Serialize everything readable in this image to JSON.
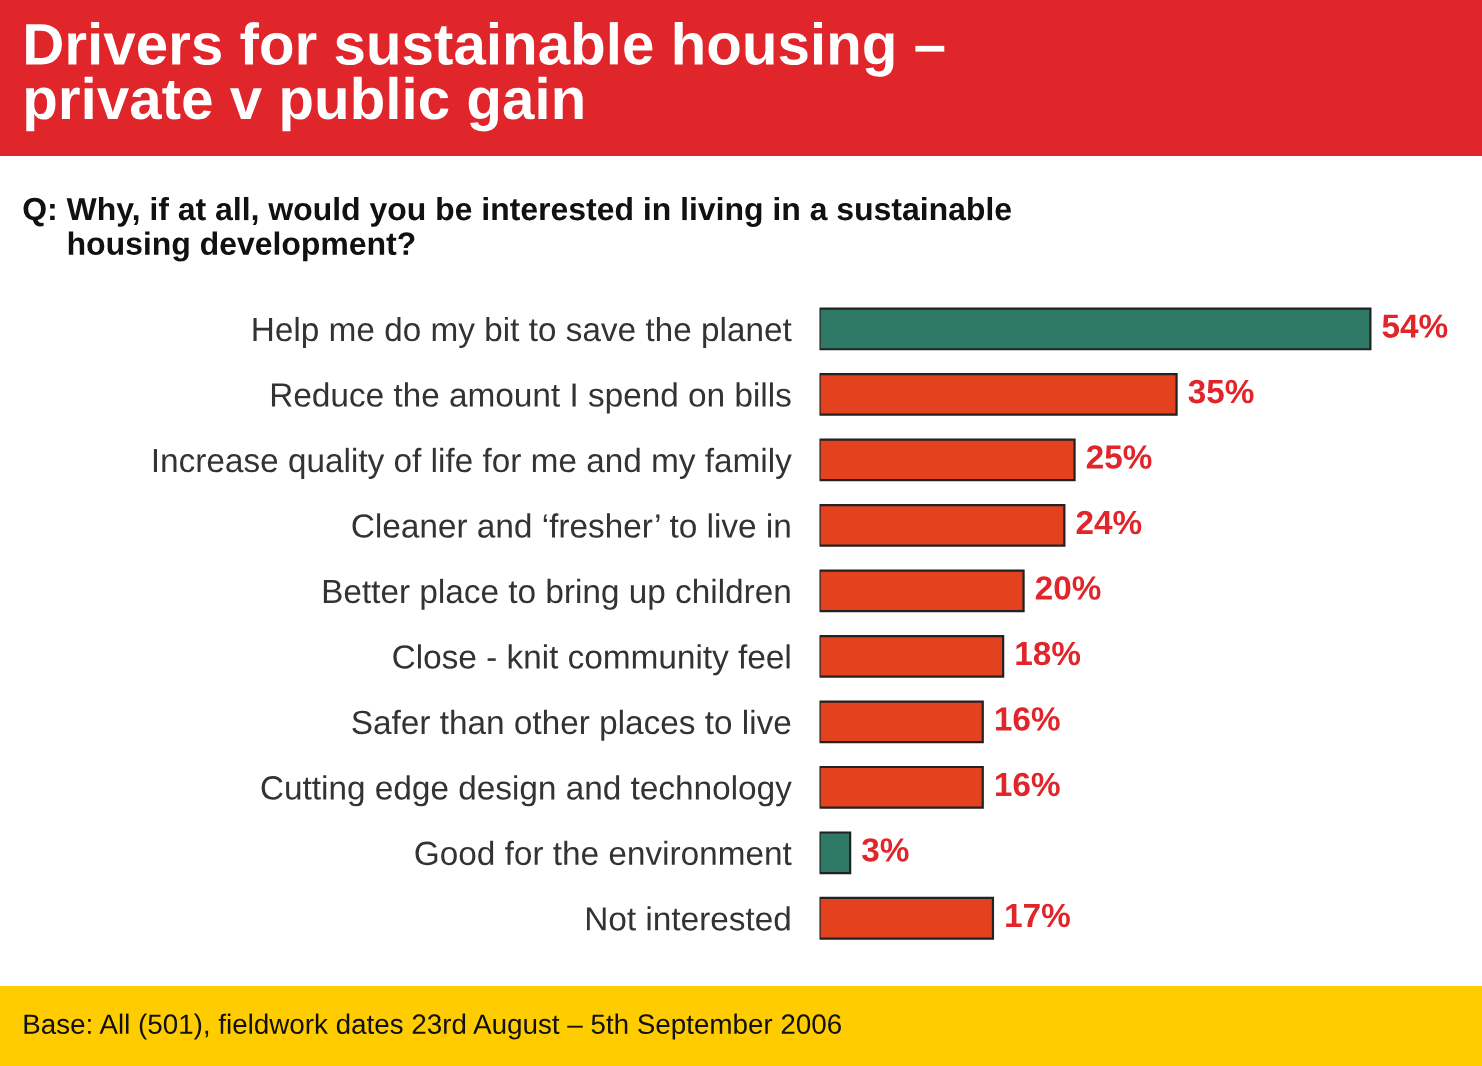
{
  "chart_data": {
    "type": "bar",
    "orientation": "horizontal",
    "title": "Drivers for sustainable housing –\nprivate v public gain",
    "subtitle": "Q: Why, if at all, would you be interested in living in a sustainable\n     housing development?",
    "categories": [
      "Help me do my bit to save the planet",
      "Reduce the amount I spend on bills",
      "Increase quality of life for me and my family",
      "Cleaner and ‘fresher’ to live in",
      "Better place to bring up children",
      "Close - knit community feel",
      "Safer than other places to live",
      "Cutting edge design and technology",
      "Good for the environment",
      "Not interested"
    ],
    "values": [
      54,
      35,
      25,
      24,
      20,
      18,
      16,
      16,
      3,
      17
    ],
    "colors": [
      "#2f7a66",
      "#e4411f",
      "#e4411f",
      "#e4411f",
      "#e4411f",
      "#e4411f",
      "#e4411f",
      "#e4411f",
      "#2f7a66",
      "#e4411f"
    ],
    "value_labels": [
      "54%",
      "35%",
      "25%",
      "24%",
      "20%",
      "18%",
      "16%",
      "16%",
      "3%",
      "17%"
    ],
    "annotations": [
      "Base: All (501), fieldwork dates 23rd August – 5th September 2006"
    ]
  }
}
